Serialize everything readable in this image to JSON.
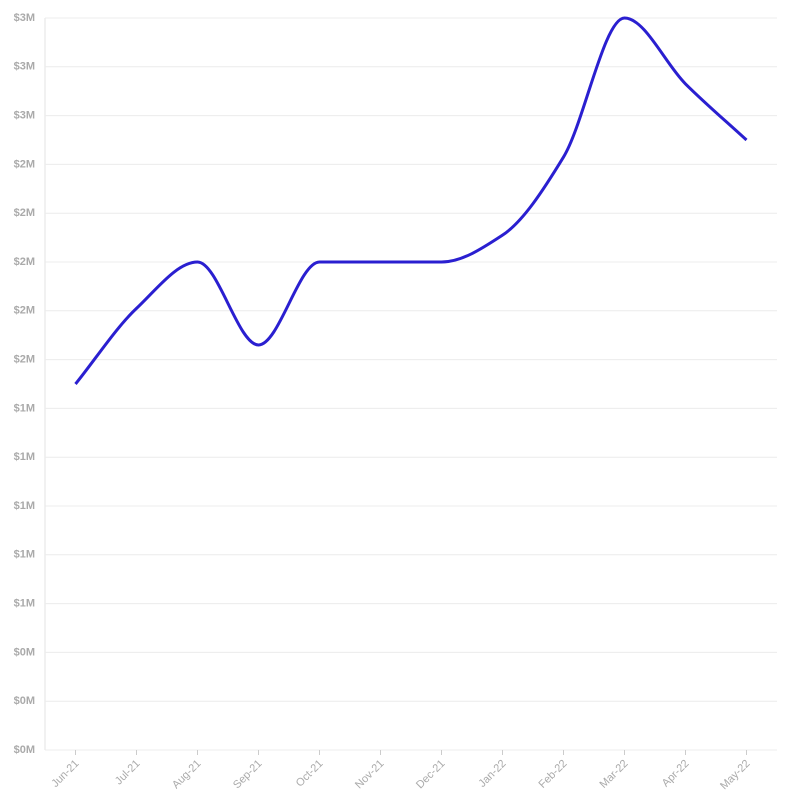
{
  "chart_data": {
    "type": "line",
    "categories": [
      "Jun-21",
      "Jul-21",
      "Aug-21",
      "Sep-21",
      "Oct-21",
      "Nov-21",
      "Dec-21",
      "Jan-22",
      "Feb-22",
      "Mar-22",
      "Apr-22",
      "May-22"
    ],
    "series": [
      {
        "color": "#2a1fd0",
        "values": [
          1500000,
          1810000,
          2000000,
          1660000,
          2000000,
          2000000,
          2000000,
          2110000,
          2430000,
          3000000,
          2730000,
          2500000
        ]
      }
    ],
    "ylim": [
      0,
      3000000
    ],
    "yticks": [
      {
        "value": 0,
        "label": "$0M"
      },
      {
        "value": 200000,
        "label": "$0M"
      },
      {
        "value": 400000,
        "label": "$0M"
      },
      {
        "value": 600000,
        "label": "$1M"
      },
      {
        "value": 800000,
        "label": "$1M"
      },
      {
        "value": 1000000,
        "label": "$1M"
      },
      {
        "value": 1200000,
        "label": "$1M"
      },
      {
        "value": 1400000,
        "label": "$1M"
      },
      {
        "value": 1600000,
        "label": "$2M"
      },
      {
        "value": 1800000,
        "label": "$2M"
      },
      {
        "value": 2000000,
        "label": "$2M"
      },
      {
        "value": 2200000,
        "label": "$2M"
      },
      {
        "value": 2400000,
        "label": "$2M"
      },
      {
        "value": 2600000,
        "label": "$3M"
      },
      {
        "value": 2800000,
        "label": "$3M"
      },
      {
        "value": 3000000,
        "label": "$3M"
      }
    ],
    "grid": true,
    "curve": "smooth"
  }
}
